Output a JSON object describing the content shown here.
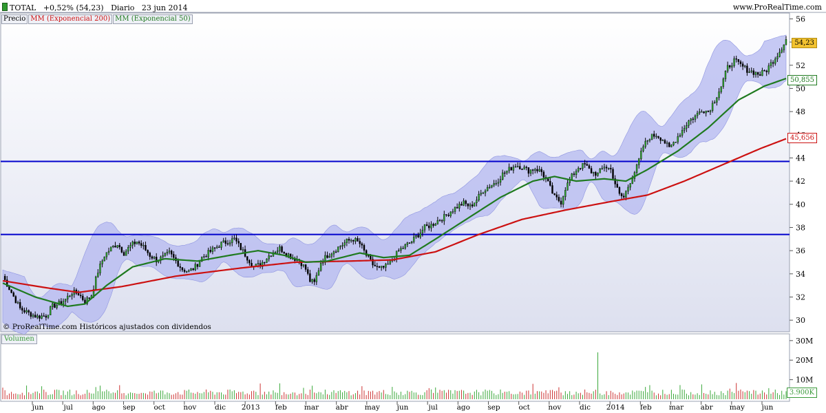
{
  "header": {
    "symbol": "TOTAL",
    "change": "+0,52% (54,23)",
    "period": "Diario",
    "date": "23 jun 2014",
    "site": "www.ProRealTime.com"
  },
  "legend": {
    "price": "Precio",
    "ema200": "MM (Exponencial 200)",
    "ema50": "MM (Exponencial 50)"
  },
  "footer_note": "© ProRealTime.com  Históricos ajustados con dividendos",
  "volume_label": "Volumen",
  "colors": {
    "ema200": "#cc1111",
    "ema50": "#1f7a1f",
    "band": "#b4b8f0",
    "hline": "#0000cc",
    "price_tag": "#f2c230"
  },
  "chart_data": {
    "type": "line",
    "price_axis": {
      "ylim": [
        29,
        56.5
      ],
      "ticks": [
        "56",
        "54",
        "52",
        "50",
        "48",
        "46",
        "44",
        "42",
        "40",
        "38",
        "36",
        "34",
        "32",
        "30"
      ]
    },
    "volume_axis": {
      "ticks": [
        "30M",
        "20M",
        "10M"
      ],
      "last_value": "3.900K"
    },
    "x_labels": [
      "jun",
      "jul",
      "ago",
      "sep",
      "oct",
      "nov",
      "dic",
      "2013",
      "feb",
      "mar",
      "abr",
      "may",
      "jun",
      "jul",
      "ago",
      "sep",
      "oct",
      "nov",
      "dic",
      "2014",
      "feb",
      "mar",
      "abr",
      "may",
      "jun"
    ],
    "horizontal_lines": [
      43.7,
      37.4
    ],
    "last_values": {
      "price": "54,23",
      "ema50": "50,855",
      "ema200": "45,656"
    },
    "price_close": [
      [
        0,
        33.8
      ],
      [
        4,
        32.4
      ],
      [
        8,
        31.0
      ],
      [
        12,
        30.6
      ],
      [
        16,
        30.3
      ],
      [
        20,
        30.4
      ],
      [
        23,
        31.2
      ],
      [
        26,
        31.4
      ],
      [
        29,
        31.8
      ],
      [
        32,
        32.4
      ],
      [
        35,
        32.3
      ],
      [
        38,
        31.6
      ],
      [
        41,
        32.2
      ],
      [
        44,
        34.2
      ],
      [
        47,
        35.6
      ],
      [
        50,
        36.2
      ],
      [
        53,
        36.6
      ],
      [
        56,
        35.8
      ],
      [
        59,
        36.4
      ],
      [
        62,
        36.8
      ],
      [
        65,
        36.3
      ],
      [
        68,
        35.6
      ],
      [
        71,
        35.2
      ],
      [
        74,
        35.4
      ],
      [
        77,
        35.8
      ],
      [
        80,
        35.1
      ],
      [
        83,
        34.4
      ],
      [
        86,
        34.2
      ],
      [
        89,
        34.6
      ],
      [
        92,
        35.4
      ],
      [
        95,
        35.8
      ],
      [
        98,
        36.2
      ],
      [
        101,
        36.6
      ],
      [
        104,
        36.8
      ],
      [
        107,
        37.0
      ],
      [
        110,
        36.2
      ],
      [
        113,
        35.4
      ],
      [
        116,
        34.6
      ],
      [
        119,
        34.8
      ],
      [
        122,
        35.4
      ],
      [
        125,
        35.9
      ],
      [
        128,
        36.2
      ],
      [
        131,
        35.8
      ],
      [
        134,
        35.4
      ],
      [
        137,
        35.2
      ],
      [
        140,
        34.4
      ],
      [
        142,
        33.4
      ],
      [
        144,
        33.2
      ],
      [
        147,
        35.0
      ],
      [
        150,
        35.6
      ],
      [
        153,
        36.0
      ],
      [
        156,
        36.4
      ],
      [
        159,
        36.8
      ],
      [
        162,
        37.0
      ],
      [
        165,
        36.6
      ],
      [
        168,
        35.6
      ],
      [
        171,
        34.8
      ],
      [
        174,
        34.4
      ],
      [
        177,
        34.6
      ],
      [
        180,
        35.2
      ],
      [
        183,
        36.0
      ],
      [
        186,
        36.4
      ],
      [
        189,
        36.8
      ],
      [
        192,
        37.4
      ],
      [
        195,
        38.0
      ],
      [
        198,
        38.2
      ],
      [
        201,
        38.6
      ],
      [
        204,
        38.9
      ],
      [
        207,
        39.4
      ],
      [
        210,
        39.8
      ],
      [
        213,
        40.1
      ],
      [
        216,
        39.8
      ],
      [
        219,
        40.4
      ],
      [
        222,
        41.2
      ],
      [
        225,
        41.6
      ],
      [
        228,
        41.9
      ],
      [
        231,
        42.6
      ],
      [
        234,
        43.0
      ],
      [
        237,
        43.4
      ],
      [
        240,
        43.2
      ],
      [
        243,
        42.9
      ],
      [
        246,
        43.1
      ],
      [
        249,
        42.8
      ],
      [
        252,
        41.8
      ],
      [
        255,
        40.6
      ],
      [
        258,
        40.2
      ],
      [
        260,
        41.4
      ],
      [
        263,
        42.4
      ],
      [
        266,
        43.2
      ],
      [
        269,
        43.4
      ],
      [
        272,
        42.8
      ],
      [
        275,
        42.6
      ],
      [
        278,
        43.3
      ],
      [
        281,
        43.0
      ],
      [
        283,
        41.8
      ],
      [
        285,
        40.8
      ],
      [
        287,
        40.6
      ],
      [
        290,
        42.0
      ],
      [
        293,
        43.2
      ],
      [
        296,
        45.0
      ],
      [
        299,
        45.8
      ],
      [
        302,
        46.0
      ],
      [
        305,
        45.6
      ],
      [
        308,
        44.8
      ],
      [
        311,
        45.6
      ],
      [
        314,
        46.4
      ],
      [
        317,
        47.2
      ],
      [
        320,
        47.6
      ],
      [
        323,
        48.2
      ],
      [
        326,
        48.0
      ],
      [
        329,
        49.0
      ],
      [
        332,
        50.2
      ],
      [
        335,
        51.8
      ],
      [
        338,
        52.4
      ],
      [
        341,
        52.0
      ],
      [
        344,
        51.6
      ],
      [
        347,
        51.4
      ],
      [
        350,
        51.2
      ],
      [
        353,
        51.6
      ],
      [
        356,
        52.4
      ],
      [
        359,
        53.2
      ],
      [
        362,
        54.23
      ]
    ],
    "ema50": [
      [
        0,
        33.2
      ],
      [
        15,
        32.0
      ],
      [
        30,
        31.2
      ],
      [
        38,
        31.4
      ],
      [
        48,
        33.0
      ],
      [
        60,
        34.6
      ],
      [
        75,
        35.3
      ],
      [
        90,
        35.1
      ],
      [
        105,
        35.6
      ],
      [
        118,
        36.0
      ],
      [
        130,
        35.6
      ],
      [
        140,
        35.0
      ],
      [
        150,
        35.1
      ],
      [
        165,
        35.8
      ],
      [
        176,
        35.4
      ],
      [
        188,
        35.6
      ],
      [
        200,
        37.0
      ],
      [
        215,
        38.8
      ],
      [
        230,
        40.6
      ],
      [
        245,
        42.0
      ],
      [
        255,
        42.4
      ],
      [
        265,
        42.0
      ],
      [
        278,
        42.2
      ],
      [
        288,
        42.0
      ],
      [
        298,
        43.0
      ],
      [
        312,
        44.6
      ],
      [
        326,
        46.6
      ],
      [
        340,
        49.0
      ],
      [
        352,
        50.2
      ],
      [
        362,
        50.855
      ]
    ],
    "ema200": [
      [
        0,
        33.4
      ],
      [
        20,
        32.8
      ],
      [
        35,
        32.4
      ],
      [
        55,
        32.9
      ],
      [
        80,
        33.8
      ],
      [
        110,
        34.5
      ],
      [
        135,
        35.0
      ],
      [
        160,
        35.1
      ],
      [
        180,
        35.2
      ],
      [
        200,
        35.9
      ],
      [
        220,
        37.4
      ],
      [
        240,
        38.7
      ],
      [
        260,
        39.5
      ],
      [
        280,
        40.2
      ],
      [
        298,
        40.8
      ],
      [
        315,
        42.0
      ],
      [
        335,
        43.6
      ],
      [
        350,
        44.8
      ],
      [
        362,
        45.656
      ]
    ],
    "volume_bars": 363
  }
}
